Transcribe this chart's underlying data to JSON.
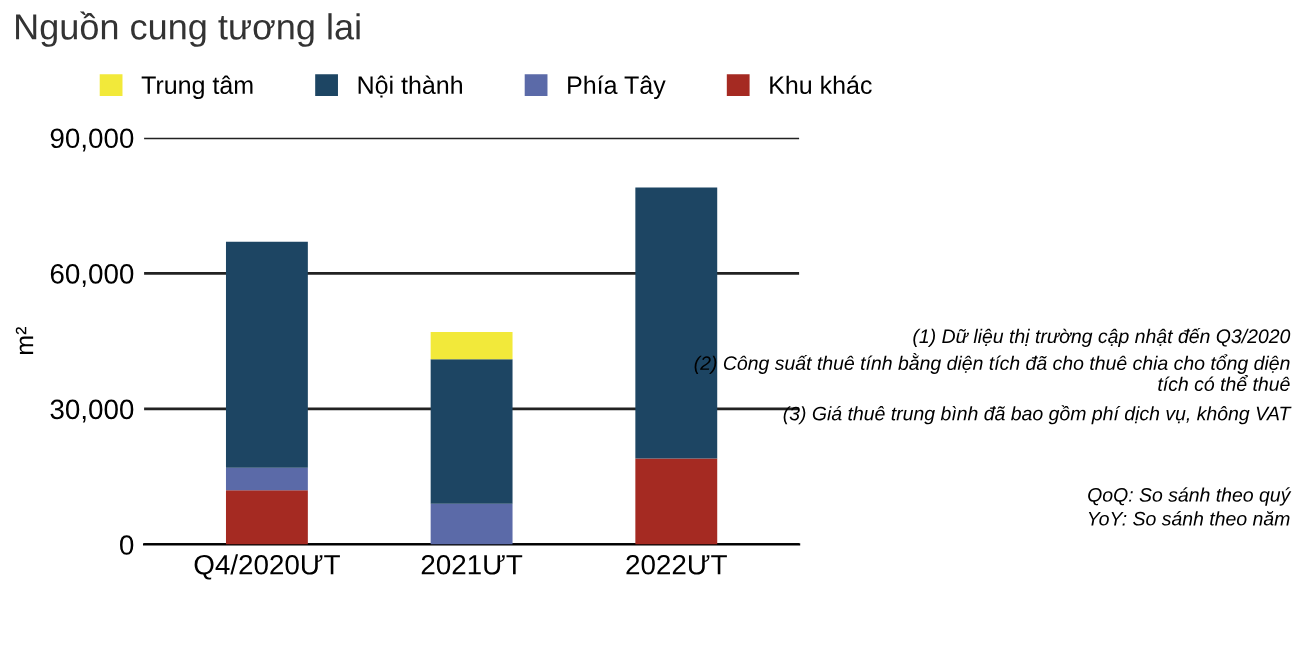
{
  "chart_data": {
    "type": "bar",
    "title": "Nguồn cung tương lai",
    "ylabel": "m²",
    "stacked": true,
    "categories": [
      "Q4/2020ƯT",
      "2021ƯT",
      "2022ƯT"
    ],
    "series": [
      {
        "name": "Khu khác",
        "color": "#a52a22",
        "values": [
          12000,
          0,
          19000
        ]
      },
      {
        "name": "Phía Tây",
        "color": "#5b6aa8",
        "values": [
          5000,
          9000,
          0
        ]
      },
      {
        "name": "Nội thành",
        "color": "#1d4563",
        "values": [
          50000,
          32000,
          60000
        ]
      },
      {
        "name": "Trung tâm",
        "color": "#f2e93a",
        "values": [
          0,
          6000,
          0
        ]
      }
    ],
    "ylim": [
      0,
      90000
    ],
    "yticks": [
      {
        "value": 0,
        "label": "0"
      },
      {
        "value": 30000,
        "label": "30,000"
      },
      {
        "value": 60000,
        "label": "60,000"
      },
      {
        "value": 90000,
        "label": "90,000"
      }
    ],
    "grid": "y",
    "legend": "top left",
    "annotations": [
      "(1) Dữ liệu thị trường cập nhật đến Q3/2020",
      "(2) Công suất thuê tính bằng diện tích đã cho thuê chia cho tổng diện tích có thể thuê",
      "(3) Giá thuê trung bình đã bao gồm phí dịch vụ, không VAT",
      "QoQ: So sánh theo quý",
      "YoY: So sánh theo năm"
    ]
  }
}
